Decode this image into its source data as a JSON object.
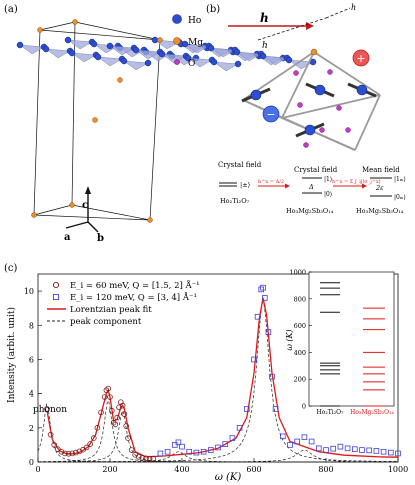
{
  "panels": {
    "a": {
      "label": "(a)",
      "axis_labels": [
        "c",
        "a",
        "b"
      ]
    },
    "b": {
      "label": "(b)",
      "legend": [
        {
          "name": "Ho",
          "color": "#2c4fd2"
        },
        {
          "name": "Mg",
          "color": "#e8902c"
        },
        {
          "name": "O",
          "color": "#c03cc0"
        }
      ],
      "vectors": {
        "h": "h",
        "h_perp": "h",
        "h_z": "h"
      },
      "level_diagram": {
        "columns": [
          {
            "title": "Crystal field",
            "states": "|±⟩",
            "compound": "Ho₂Ti₂O₇"
          },
          {
            "title": "Crystal field",
            "gap": "Δ",
            "states": [
              "|1⟩",
              "|0⟩"
            ],
            "compound": "Ho₃Mg₂Sb₃O₁₄"
          },
          {
            "title": "Mean field",
            "gap": "2ε",
            "states": [
              "|1ₘ⟩",
              "|0ₘ⟩"
            ],
            "compound": "Ho₃Mg₂Sb₃O₁₄"
          }
        ],
        "transitions": [
          "h^x = Δ/2",
          "h^x = Σ J_ij⟨σ_j^x⟩"
        ]
      }
    },
    "c": {
      "label": "(c)"
    }
  },
  "chart_data": [
    {
      "type": "scatter",
      "xlabel": "ω (K)",
      "ylabel": "Intensity (arbit. unit)",
      "xlim": [
        0,
        1000
      ],
      "ylim": [
        0,
        11
      ],
      "xticks": [
        0,
        200,
        400,
        600,
        800,
        1000
      ],
      "yticks": [
        0,
        2,
        4,
        6,
        8,
        10
      ],
      "annotation": "phonon",
      "series": [
        {
          "name": "E_i = 60 meV, Q = [1.5, 2] Å⁻¹",
          "marker": "open-circle",
          "color": "#7a1a1a",
          "x": [
            25,
            35,
            45,
            55,
            65,
            75,
            85,
            95,
            105,
            115,
            125,
            135,
            145,
            155,
            165,
            175,
            185,
            190,
            195,
            200,
            205,
            210,
            215,
            220,
            225,
            230,
            235,
            240,
            245,
            250,
            260,
            270,
            280,
            290,
            300,
            310,
            320
          ],
          "y": [
            3.1,
            1.6,
            1.0,
            0.75,
            0.6,
            0.5,
            0.48,
            0.5,
            0.55,
            0.62,
            0.72,
            0.85,
            1.05,
            1.4,
            2.0,
            2.9,
            3.8,
            4.2,
            4.3,
            3.8,
            3.0,
            2.3,
            2.2,
            2.6,
            3.2,
            3.5,
            3.3,
            2.8,
            2.1,
            1.4,
            0.7,
            0.42,
            0.3,
            0.25,
            0.22,
            0.2,
            0.2
          ]
        },
        {
          "name": "E_i = 120 meV, Q = [3, 4] Å⁻¹",
          "marker": "open-square",
          "color": "#4040d8",
          "x": [
            340,
            360,
            380,
            390,
            400,
            420,
            440,
            460,
            480,
            500,
            520,
            540,
            560,
            580,
            600,
            610,
            620,
            625,
            630,
            640,
            650,
            660,
            680,
            700,
            720,
            740,
            760,
            780,
            800,
            820,
            840,
            860,
            880,
            900,
            920,
            940,
            960,
            980,
            1000
          ],
          "y": [
            0.5,
            0.6,
            1.0,
            1.15,
            0.9,
            0.6,
            0.55,
            0.6,
            0.7,
            0.85,
            1.05,
            1.4,
            2.0,
            3.1,
            6.0,
            8.5,
            10.1,
            10.2,
            9.6,
            7.6,
            5.0,
            3.1,
            1.5,
            1.0,
            1.2,
            1.45,
            1.2,
            0.8,
            0.7,
            0.78,
            0.9,
            0.8,
            0.75,
            0.7,
            0.68,
            0.65,
            0.6,
            0.55,
            0.5
          ]
        },
        {
          "name": "Lorentzian peak fit",
          "line": "solid",
          "color": "#e01818",
          "x": [
            25,
            40,
            60,
            80,
            100,
            120,
            140,
            160,
            180,
            190,
            195,
            200,
            210,
            220,
            230,
            235,
            240,
            250,
            270,
            300,
            350,
            400,
            450,
            500,
            550,
            580,
            600,
            615,
            625,
            635,
            650,
            670,
            700,
            740,
            780,
            850,
            950,
            1000
          ],
          "y": [
            3.0,
            1.3,
            0.65,
            0.48,
            0.48,
            0.6,
            0.9,
            1.6,
            3.2,
            4.0,
            4.2,
            3.8,
            2.4,
            2.5,
            3.2,
            3.3,
            3.1,
            2.0,
            0.6,
            0.3,
            0.35,
            0.45,
            0.55,
            0.8,
            1.4,
            2.6,
            5.2,
            8.4,
            9.6,
            8.6,
            5.2,
            2.6,
            1.2,
            0.9,
            0.6,
            0.4,
            0.3,
            0.28
          ]
        },
        {
          "name": "peak component",
          "line": "dashed",
          "color": "#222222"
        }
      ]
    },
    {
      "type": "scatter",
      "ylabel": "ω (K)",
      "ylim": [
        0,
        1000
      ],
      "yticks": [
        0,
        200,
        400,
        600,
        800,
        1000
      ],
      "categories": [
        "Ho₂Ti₂O₇",
        "Ho₃Mg₂Sb₃O₁₄"
      ],
      "series": [
        {
          "name": "Ho₂Ti₂O₇",
          "color": "#111111",
          "values": [
            0,
            240,
            270,
            300,
            320,
            700,
            830,
            880,
            920
          ]
        },
        {
          "name": "Ho₃Mg₂Sb₃O₁₄",
          "color": "#e01818",
          "values": [
            0,
            120,
            180,
            240,
            290,
            400,
            570,
            650,
            730
          ]
        }
      ]
    }
  ]
}
